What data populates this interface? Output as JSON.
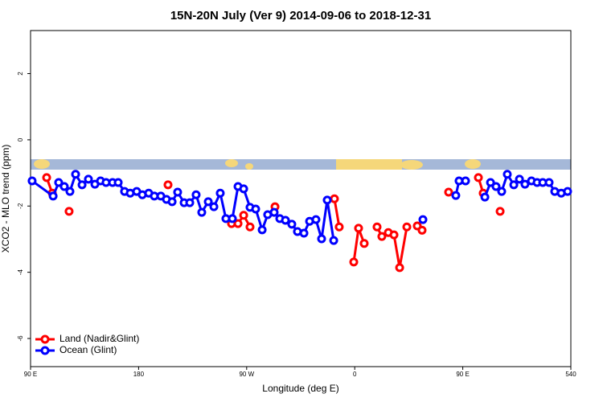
{
  "chart_data": {
    "type": "line",
    "title": "15N-20N July (Ver 9)   2014-09-06 to 2018-12-31",
    "x_label": "Longitude (deg E)",
    "y_label": "XCO2 - MLO trend (ppm)",
    "xlim": [
      90,
      540
    ],
    "ylim": [
      -6.85,
      3.3
    ],
    "xticks": [
      {
        "value": 90,
        "label": "90 E"
      },
      180,
      {
        "value": 270,
        "label": "90 W"
      },
      {
        "value": 360,
        "label": "0"
      },
      {
        "value": 450,
        "label": "90 E"
      },
      540
    ],
    "yticks": [
      2,
      0,
      -2,
      -4,
      -6
    ],
    "legend": "bottom-left",
    "series": [
      {
        "name": "Land (Nadir&Glint)",
        "color": "#ff0000",
        "x": [
          103.4,
          108.1,
          null,
          122.1,
          null,
          204.5,
          null,
          257.4,
          262.8,
          267.5,
          272.8,
          null,
          293.6,
          null,
          343.1,
          347.1,
          null,
          359.2,
          363.2,
          367.9,
          null,
          378.6,
          382.6,
          388.0,
          392.7,
          397.4,
          403.4,
          null,
          412.1,
          416.1,
          null,
          438.2,
          null,
          463.0,
          467.0,
          null,
          481.1
        ],
        "values": [
          -1.14,
          -1.61,
          null,
          -2.16,
          null,
          -1.36,
          null,
          -2.53,
          -2.53,
          -2.28,
          -2.63,
          null,
          -2.02,
          null,
          -1.78,
          -2.63,
          null,
          -3.69,
          -2.67,
          -3.13,
          null,
          -2.63,
          -2.92,
          -2.8,
          -2.87,
          -3.86,
          -2.63,
          null,
          -2.6,
          -2.73,
          null,
          -1.58,
          null,
          -1.14,
          -1.61,
          null,
          -2.16
        ]
      },
      {
        "name": "Ocean (Glint)",
        "color": "#0000ff",
        "x": [
          91.3,
          108.8,
          113.4,
          118.1,
          122.8,
          127.5,
          132.9,
          138.2,
          143.6,
          148.3,
          152.9,
          158.3,
          163.0,
          168.3,
          173.0,
          178.4,
          183.1,
          188.4,
          193.1,
          198.5,
          203.2,
          207.9,
          212.5,
          217.9,
          222.6,
          227.9,
          232.6,
          238.0,
          242.7,
          248.0,
          252.7,
          258.1,
          262.8,
          267.5,
          272.8,
          277.5,
          282.9,
          287.5,
          292.9,
          297.6,
          302.3,
          307.6,
          312.3,
          317.7,
          322.4,
          327.7,
          332.4,
          337.1,
          342.5,
          null,
          416.8,
          null,
          444.2,
          446.9,
          452.3,
          null,
          468.4,
          473.1,
          477.7,
          482.4,
          487.1,
          492.5,
          497.2,
          501.8,
          507.2,
          511.9,
          516.6,
          521.9,
          526.6,
          532.0,
          537.3
        ],
        "values": [
          -1.24,
          -1.7,
          -1.29,
          -1.41,
          -1.56,
          -1.04,
          -1.36,
          -1.19,
          -1.34,
          -1.24,
          -1.29,
          -1.29,
          -1.29,
          -1.56,
          -1.61,
          -1.56,
          -1.66,
          -1.61,
          -1.7,
          -1.7,
          -1.8,
          -1.87,
          -1.58,
          -1.9,
          -1.9,
          -1.66,
          -2.19,
          -1.87,
          -2.02,
          -1.61,
          -2.38,
          -2.38,
          -1.41,
          -1.48,
          -2.04,
          -2.09,
          -2.72,
          -2.26,
          -2.19,
          -2.38,
          -2.43,
          -2.55,
          -2.77,
          -2.82,
          -2.46,
          -2.41,
          -2.99,
          -1.82,
          -3.04,
          null,
          -2.41,
          null,
          -1.68,
          -1.24,
          -1.24,
          null,
          -1.73,
          -1.29,
          -1.41,
          -1.56,
          -1.04,
          -1.36,
          -1.19,
          -1.34,
          -1.24,
          -1.29,
          -1.29,
          -1.29,
          -1.56,
          -1.61,
          -1.56
        ]
      }
    ]
  }
}
